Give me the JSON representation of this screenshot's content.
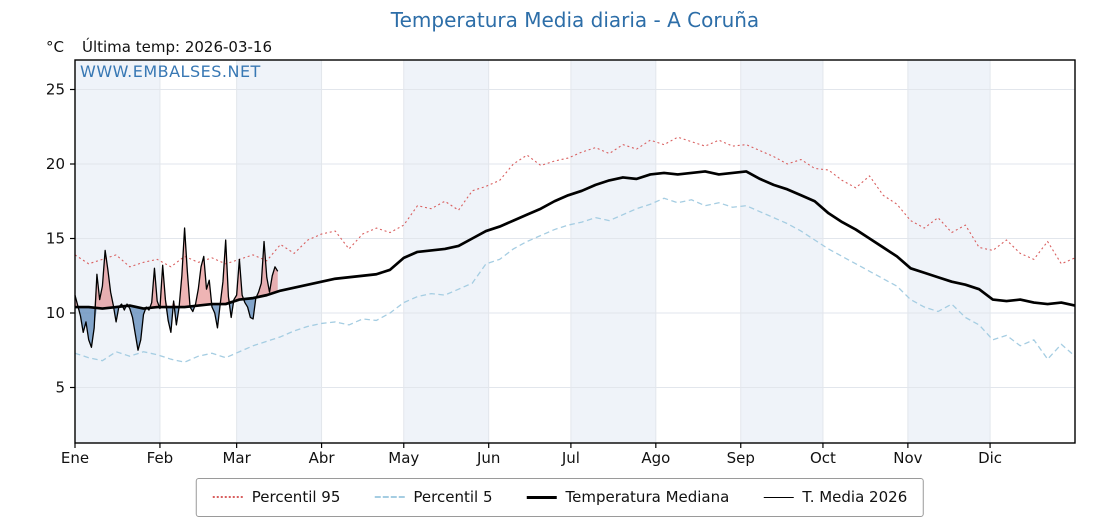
{
  "header": {
    "title": "Temperatura Media diaria - A Coruña",
    "units_label": "°C",
    "last_temp_label": "Última temp: 2026-03-16"
  },
  "watermark": "WWW.EMBALSES.NET",
  "chart_data": {
    "type": "line",
    "title": "Temperatura Media diaria - A Coruña",
    "subtitle": "Última temp: 2026-03-16",
    "x_axis": {
      "months": [
        "Ene",
        "Feb",
        "Mar",
        "Abr",
        "May",
        "Jun",
        "Jul",
        "Ago",
        "Sep",
        "Oct",
        "Nov",
        "Dic"
      ],
      "month_start_days": [
        1,
        32,
        60,
        91,
        121,
        152,
        182,
        213,
        244,
        274,
        305,
        335
      ],
      "range_days": [
        1,
        366
      ]
    },
    "y_axis": {
      "label": "°C",
      "ticks": [
        5,
        10,
        15,
        20,
        25
      ],
      "ylim": [
        1.3,
        27.0
      ]
    },
    "grid": true,
    "legend_position": "bottom",
    "style": {
      "band_color": "#eff3f9",
      "grid_color": "#e2e6ec",
      "frame_color": "#000000",
      "title_color": "#2d6ea8",
      "watermark_color": "#3878b4",
      "fill_above": "rgba(222,105,105,0.50)",
      "fill_below": "rgba(93,138,185,0.75)"
    },
    "series": [
      {
        "key": "p95",
        "name": "Percentil 95",
        "color": "#d95f5f",
        "dash": "dotted",
        "width": 1.1,
        "start_day": 1,
        "step_days": 5,
        "values": [
          13.9,
          13.3,
          13.6,
          13.9,
          13.1,
          13.4,
          13.6,
          13.1,
          13.8,
          13.4,
          13.7,
          13.3,
          13.6,
          13.9,
          13.5,
          14.6,
          14.0,
          14.9,
          15.3,
          15.5,
          14.3,
          15.3,
          15.7,
          15.4,
          15.9,
          17.2,
          17.0,
          17.5,
          16.9,
          18.2,
          18.5,
          18.9,
          20.0,
          20.6,
          19.9,
          20.2,
          20.4,
          20.8,
          21.1,
          20.7,
          21.3,
          21.0,
          21.6,
          21.3,
          21.8,
          21.5,
          21.2,
          21.6,
          21.2,
          21.3,
          20.9,
          20.5,
          20.0,
          20.3,
          19.7,
          19.6,
          18.9,
          18.4,
          19.2,
          17.9,
          17.3,
          16.2,
          15.7,
          16.4,
          15.4,
          15.9,
          14.4,
          14.2,
          14.9,
          14.0,
          13.6,
          14.8,
          13.3,
          13.7
        ]
      },
      {
        "key": "p5",
        "name": "Percentil 5",
        "color": "#a5cde2",
        "dash": "dashed",
        "width": 1.3,
        "start_day": 1,
        "step_days": 5,
        "values": [
          7.3,
          7.0,
          6.8,
          7.4,
          7.1,
          7.4,
          7.2,
          6.9,
          6.7,
          7.1,
          7.3,
          7.0,
          7.4,
          7.8,
          8.1,
          8.4,
          8.8,
          9.1,
          9.3,
          9.4,
          9.2,
          9.6,
          9.5,
          10.0,
          10.7,
          11.1,
          11.3,
          11.2,
          11.6,
          12.0,
          13.3,
          13.6,
          14.3,
          14.8,
          15.2,
          15.6,
          15.9,
          16.1,
          16.4,
          16.2,
          16.6,
          17.0,
          17.3,
          17.7,
          17.4,
          17.6,
          17.2,
          17.4,
          17.1,
          17.2,
          16.8,
          16.4,
          16.0,
          15.5,
          14.9,
          14.3,
          13.8,
          13.3,
          12.8,
          12.3,
          11.8,
          10.9,
          10.4,
          10.1,
          10.6,
          9.7,
          9.2,
          8.2,
          8.5,
          7.8,
          8.2,
          6.9,
          7.9,
          7.1
        ]
      },
      {
        "key": "mediana",
        "name": "Temperatura Mediana",
        "color": "#000000",
        "dash": "solid",
        "width": 2.7,
        "start_day": 1,
        "step_days": 5,
        "values": [
          10.4,
          10.4,
          10.3,
          10.4,
          10.5,
          10.3,
          10.4,
          10.4,
          10.4,
          10.5,
          10.6,
          10.6,
          10.9,
          11.0,
          11.2,
          11.5,
          11.7,
          11.9,
          12.1,
          12.3,
          12.4,
          12.5,
          12.6,
          12.9,
          13.7,
          14.1,
          14.2,
          14.3,
          14.5,
          15.0,
          15.5,
          15.8,
          16.2,
          16.6,
          17.0,
          17.5,
          17.9,
          18.2,
          18.6,
          18.9,
          19.1,
          19.0,
          19.3,
          19.4,
          19.3,
          19.4,
          19.5,
          19.3,
          19.4,
          19.5,
          19.0,
          18.6,
          18.3,
          17.9,
          17.5,
          16.7,
          16.1,
          15.6,
          15.0,
          14.4,
          13.8,
          13.0,
          12.7,
          12.4,
          12.1,
          11.9,
          11.6,
          10.9,
          10.8,
          10.9,
          10.7,
          10.6,
          10.7,
          10.5
        ]
      },
      {
        "key": "t2026",
        "name": "T. Media 2026",
        "color": "#000000",
        "dash": "solid",
        "width": 1.3,
        "start_day": 1,
        "step_days": 1,
        "values": [
          11.2,
          10.5,
          9.8,
          8.7,
          9.4,
          8.2,
          7.7,
          9.0,
          12.6,
          10.9,
          11.8,
          14.2,
          12.9,
          11.4,
          10.5,
          9.4,
          10.4,
          10.6,
          10.2,
          10.6,
          10.3,
          9.7,
          8.6,
          7.5,
          8.2,
          9.9,
          10.4,
          10.2,
          10.7,
          13.0,
          10.8,
          10.3,
          13.2,
          10.9,
          9.5,
          8.7,
          10.8,
          9.2,
          10.4,
          12.5,
          15.7,
          12.8,
          10.4,
          10.1,
          10.6,
          11.6,
          13.1,
          13.8,
          11.6,
          12.2,
          10.4,
          10.0,
          9.0,
          10.6,
          12.1,
          14.9,
          11.1,
          9.7,
          10.9,
          11.2,
          13.6,
          11.2,
          10.7,
          10.4,
          9.7,
          9.6,
          11.0,
          11.4,
          12.0,
          14.8,
          12.4,
          11.4,
          12.5,
          13.1,
          12.8
        ]
      }
    ]
  }
}
